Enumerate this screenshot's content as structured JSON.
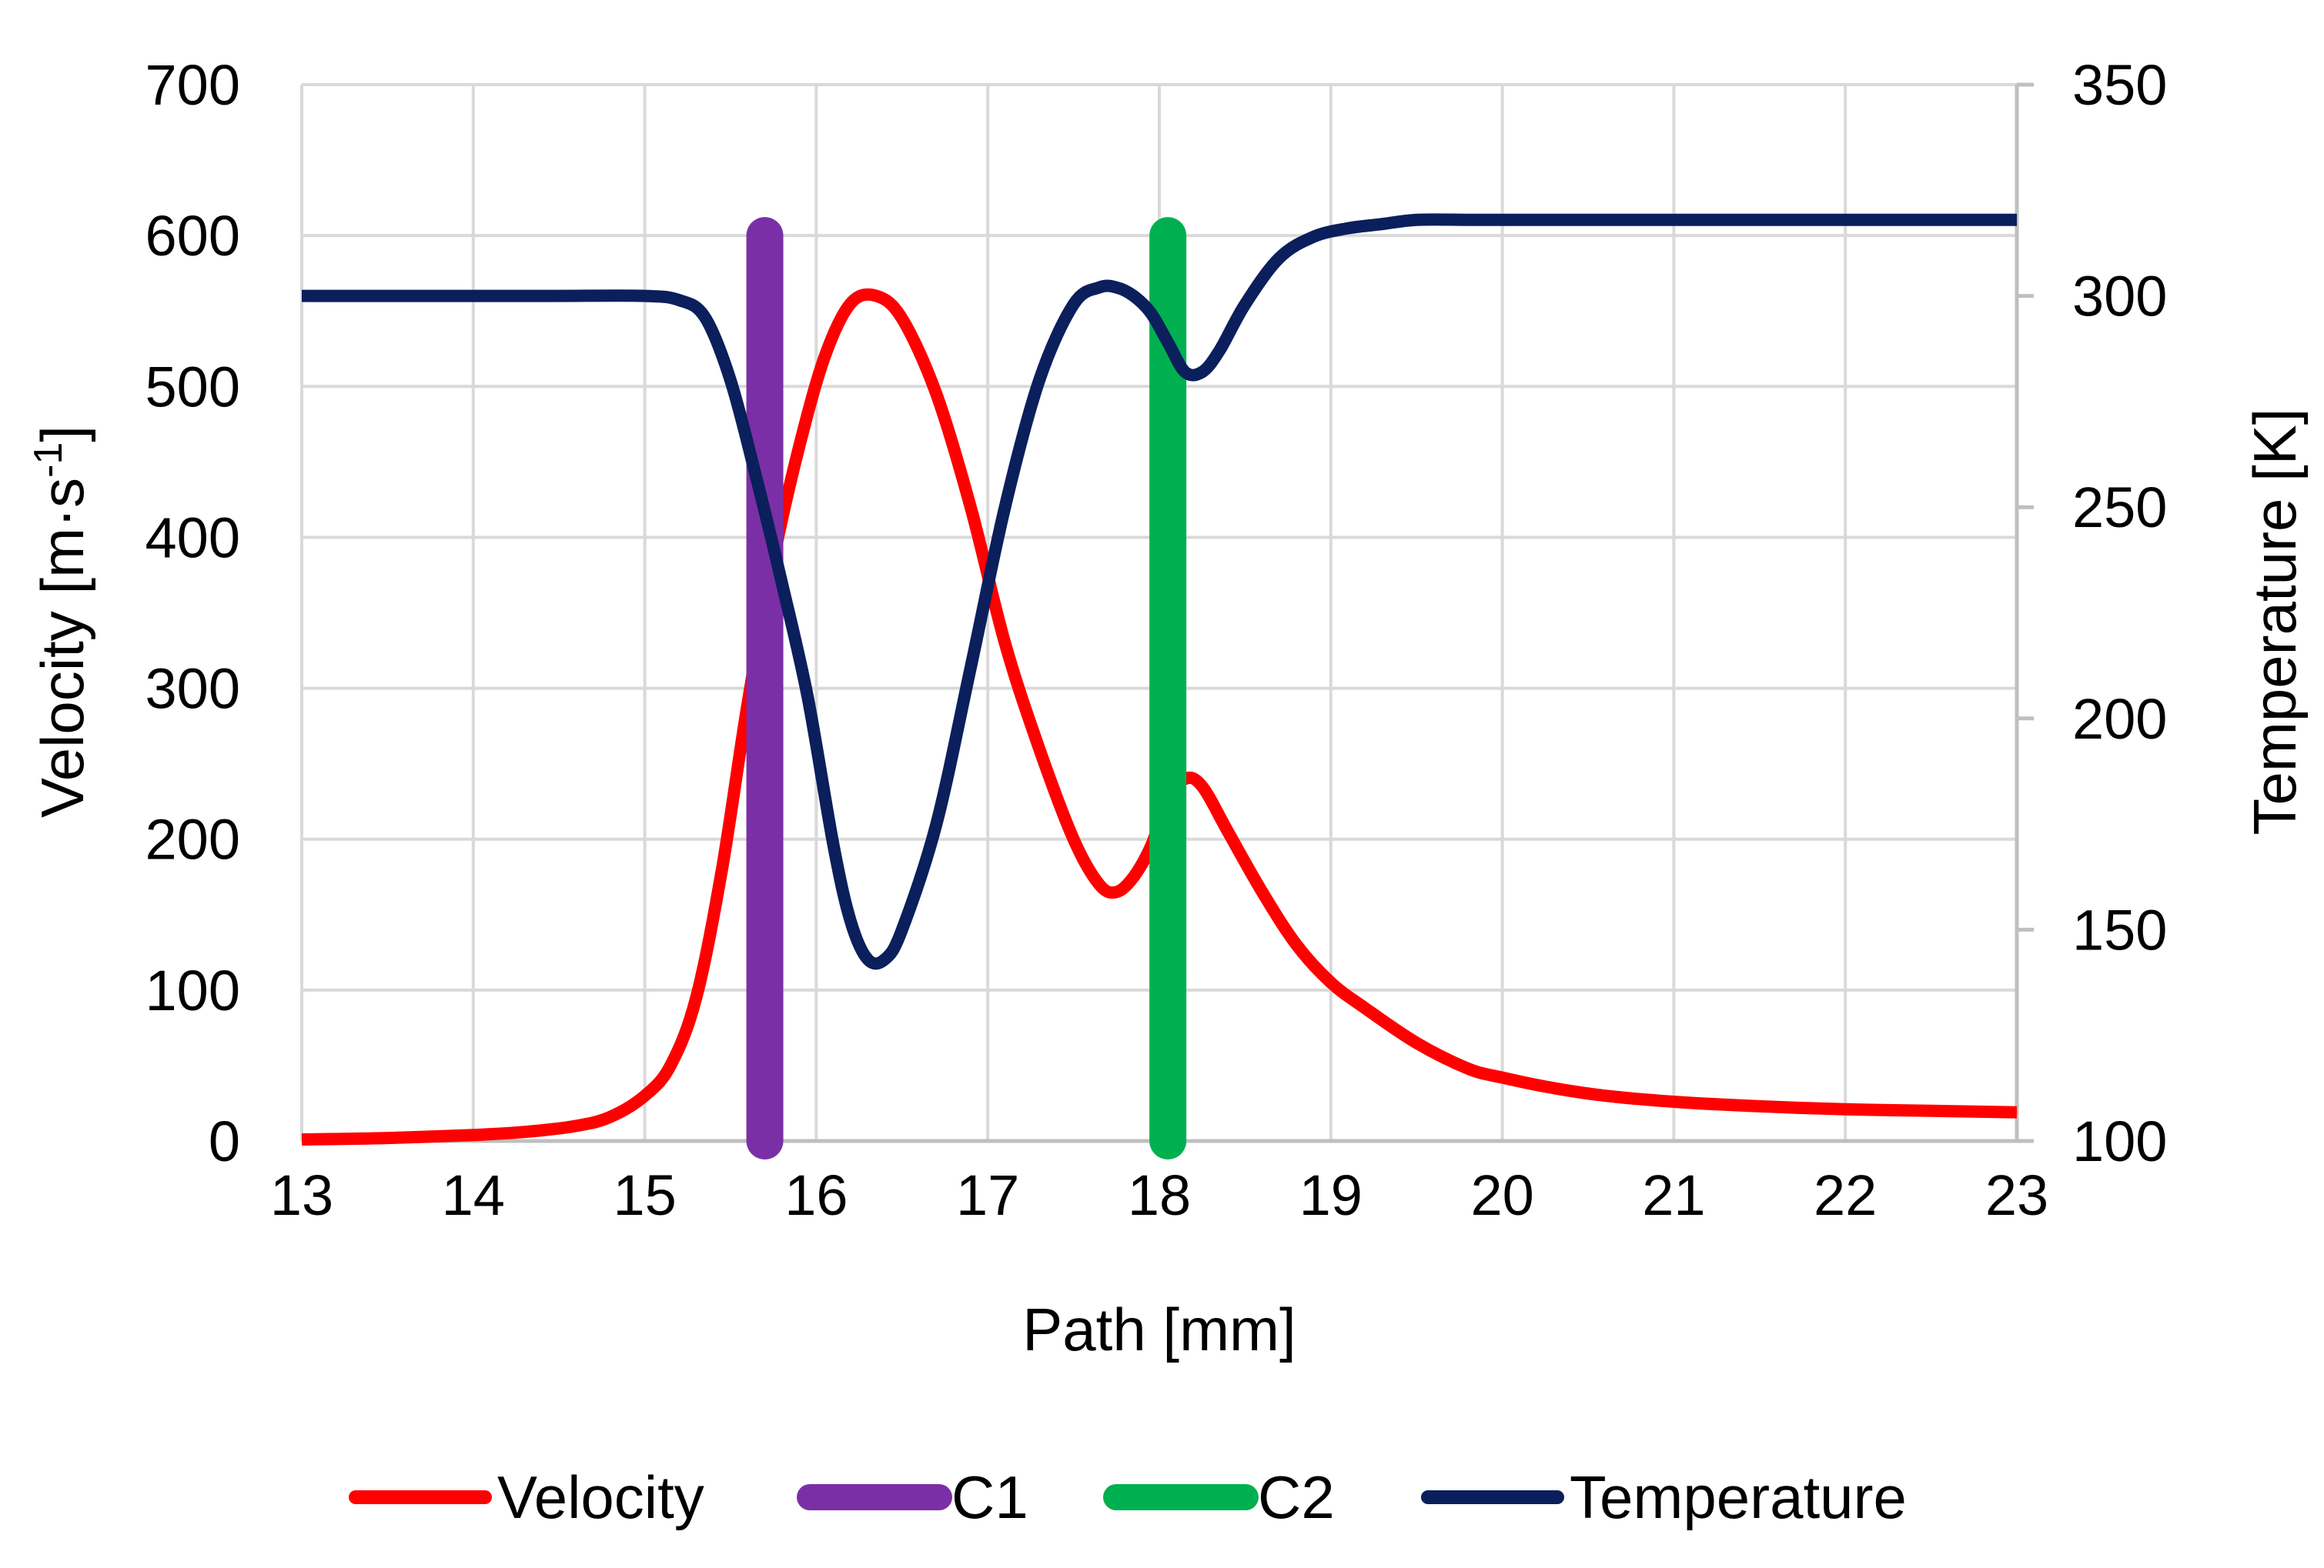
{
  "chart_data": {
    "type": "line",
    "title": "",
    "xlabel": "Path [mm]",
    "ylabel": "Velocity [m·s",
    "ylabel_superscript": "-1",
    "ylabel_suffix": "]",
    "y2label": "Temperature [K]",
    "xlim": [
      13,
      23
    ],
    "ylim": [
      0,
      700
    ],
    "y2lim": [
      100,
      350
    ],
    "x_ticks": [
      "13",
      "14",
      "15",
      "16",
      "17",
      "18",
      "19",
      "20",
      "21",
      "22",
      "23"
    ],
    "y_ticks": [
      "0",
      "100",
      "200",
      "300",
      "400",
      "500",
      "600",
      "700"
    ],
    "y2_ticks": [
      "100",
      "150",
      "200",
      "250",
      "300",
      "350"
    ],
    "grid": true,
    "legend_position": "bottom",
    "series": [
      {
        "name": "Velocity",
        "axis": "left",
        "color": "#ff0000",
        "x": [
          13.0,
          13.5,
          14.0,
          14.3,
          14.6,
          14.8,
          15.0,
          15.15,
          15.3,
          15.45,
          15.6,
          15.75,
          15.9,
          16.05,
          16.2,
          16.35,
          16.5,
          16.7,
          16.9,
          17.1,
          17.3,
          17.5,
          17.65,
          17.75,
          17.85,
          17.95,
          18.05,
          18.15,
          18.25,
          18.4,
          18.6,
          18.8,
          19.0,
          19.2,
          19.5,
          19.8,
          20.0,
          20.3,
          20.6,
          21.0,
          21.5,
          22.0,
          22.5,
          23.0
        ],
        "y": [
          1,
          2,
          4,
          6,
          10,
          16,
          30,
          50,
          95,
          180,
          290,
          385,
          460,
          520,
          555,
          560,
          545,
          495,
          420,
          330,
          260,
          200,
          170,
          165,
          175,
          195,
          225,
          240,
          235,
          205,
          165,
          130,
          105,
          88,
          65,
          48,
          42,
          35,
          30,
          26,
          23,
          21,
          20,
          19
        ]
      },
      {
        "name": "C1",
        "axis": "left",
        "color": "#7b2fa6",
        "x": [
          15.7,
          15.7
        ],
        "y": [
          0,
          600
        ]
      },
      {
        "name": "C2",
        "axis": "left",
        "color": "#00b050",
        "x": [
          18.05,
          18.05
        ],
        "y": [
          0,
          600
        ]
      },
      {
        "name": "Temperature",
        "axis": "right",
        "color": "#0a1f5c",
        "x": [
          13.0,
          13.5,
          14.0,
          14.5,
          15.0,
          15.2,
          15.35,
          15.5,
          15.65,
          15.8,
          15.95,
          16.1,
          16.2,
          16.3,
          16.4,
          16.5,
          16.7,
          16.9,
          17.1,
          17.3,
          17.5,
          17.65,
          17.75,
          17.85,
          17.95,
          18.05,
          18.15,
          18.25,
          18.35,
          18.5,
          18.7,
          18.9,
          19.1,
          19.3,
          19.5,
          19.8,
          20.0,
          20.5,
          21.0,
          22.0,
          23.0
        ],
        "y": [
          300,
          300,
          300,
          300,
          300,
          299,
          295,
          280,
          257,
          232,
          205,
          170,
          152,
          143,
          143,
          150,
          175,
          212,
          250,
          280,
          298,
          302,
          302,
          300,
          296,
          289,
          282,
          282,
          287,
          298,
          309,
          314,
          316,
          317,
          318,
          318,
          318,
          318,
          318,
          318,
          318
        ]
      }
    ]
  }
}
